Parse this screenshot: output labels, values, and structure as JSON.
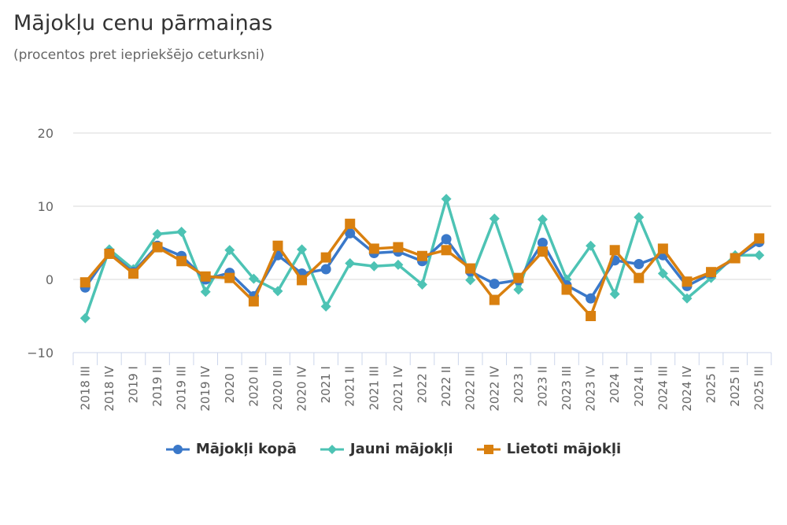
{
  "chart_data": {
    "type": "line",
    "title": "Mājokļu cenu pārmaiņas",
    "subtitle": "(procentos pret iepriekšējo ceturksni)",
    "xlabel": "",
    "ylabel": "",
    "ylim": [
      -10,
      20
    ],
    "yticks": [
      {
        "value": 20,
        "label": "20"
      },
      {
        "value": 10,
        "label": "10"
      },
      {
        "value": 0,
        "label": "0"
      },
      {
        "value": -10,
        "label": "−10"
      }
    ],
    "grid": true,
    "legend_position": "bottom",
    "categories": [
      "2018 III",
      "2018 IV",
      "2019 I",
      "2019 II",
      "2019 III",
      "2019 IV",
      "2020 I",
      "2020 II",
      "2020 III",
      "2020 IV",
      "2021 I",
      "2021 II",
      "2021 III",
      "2021 IV",
      "2022 I",
      "2022 II",
      "2022 III",
      "2022 IV",
      "2023 I",
      "2023 II",
      "2023 III",
      "2023 IV",
      "2024 I",
      "2024 II",
      "2024 III",
      "2024 IV",
      "2025 I",
      "2025 II",
      "2025 III"
    ],
    "series": [
      {
        "name": "Mājokļi kopā",
        "color": "#3a78c9",
        "marker": "circle",
        "values": [
          -1.1,
          3.6,
          1.0,
          4.6,
          3.2,
          0.0,
          0.9,
          -2.3,
          3.3,
          0.8,
          1.4,
          6.3,
          3.6,
          3.8,
          2.5,
          5.5,
          1.1,
          -0.6,
          -0.1,
          5.0,
          -0.8,
          -2.6,
          2.6,
          2.1,
          3.3,
          -0.9,
          0.8,
          2.9,
          5.1
        ]
      },
      {
        "name": "Jauni mājokļi",
        "color": "#4dc3b4",
        "marker": "diamond",
        "values": [
          -5.3,
          4.1,
          1.4,
          6.2,
          6.5,
          -1.7,
          4.0,
          0.1,
          -1.6,
          4.1,
          -3.7,
          2.2,
          1.8,
          2.0,
          -0.7,
          11.0,
          -0.1,
          8.3,
          -1.4,
          8.2,
          0.0,
          4.6,
          -2.0,
          8.5,
          0.8,
          -2.6,
          0.2,
          3.3,
          3.3
        ]
      },
      {
        "name": "Lietoti mājokļi",
        "color": "#d9800f",
        "marker": "square",
        "values": [
          -0.4,
          3.5,
          0.8,
          4.4,
          2.5,
          0.4,
          0.2,
          -3.0,
          4.6,
          -0.1,
          3.0,
          7.6,
          4.2,
          4.4,
          3.2,
          4.0,
          1.5,
          -2.8,
          0.2,
          3.8,
          -1.4,
          -5.0,
          4.0,
          0.2,
          4.2,
          -0.3,
          1.0,
          2.9,
          5.6
        ]
      }
    ]
  }
}
